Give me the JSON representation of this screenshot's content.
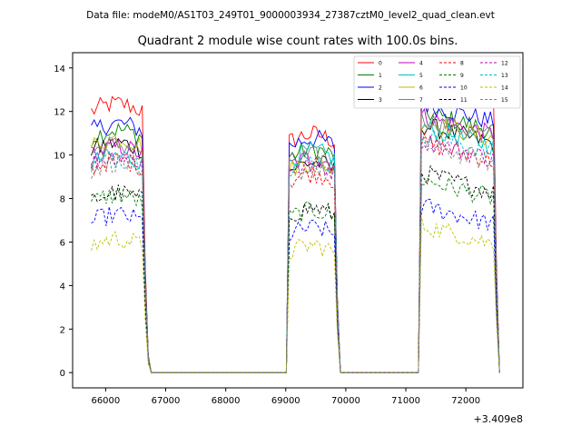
{
  "figure": {
    "suptitle": "Data file: modeM0/AS1T03_249T01_9000003934_27387cztM0_level2_quad_clean.evt",
    "offset_text": "+3.409e8"
  },
  "chart_data": {
    "type": "line",
    "title": "Quadrant 2 module wise count rates with 100.0s bins.",
    "xlabel": "",
    "ylabel": "",
    "x_offset": 340900000,
    "xlim": [
      65450,
      72950
    ],
    "ylim": [
      -0.7,
      14.7
    ],
    "x_ticks": [
      66000,
      67000,
      68000,
      69000,
      70000,
      71000,
      72000
    ],
    "x_tick_labels": [
      "66000",
      "67000",
      "68000",
      "69000",
      "70000",
      "71000",
      "72000"
    ],
    "y_ticks": [
      0,
      2,
      4,
      6,
      8,
      10,
      12,
      14
    ],
    "y_tick_labels": [
      "0",
      "2",
      "4",
      "6",
      "8",
      "10",
      "12",
      "14"
    ],
    "legend_position": "top-right",
    "legend_columns": 4,
    "gti_segments": [
      {
        "start": 65760,
        "end": 66640,
        "tail_end": 66720
      },
      {
        "start": 69060,
        "end": 69840,
        "tail_end": 69890
      },
      {
        "start": 71230,
        "end": 72490,
        "tail_end": 72560
      }
    ],
    "series": [
      {
        "name": "0",
        "color": "#ff0000",
        "dashed": false,
        "levels": [
          12.0,
          10.6,
          12.9
        ]
      },
      {
        "name": "1",
        "color": "#008000",
        "dashed": false,
        "levels": [
          10.8,
          9.9,
          11.3
        ]
      },
      {
        "name": "2",
        "color": "#0000ff",
        "dashed": false,
        "levels": [
          11.1,
          10.4,
          11.7
        ]
      },
      {
        "name": "3",
        "color": "#000000",
        "dashed": false,
        "levels": [
          10.2,
          9.3,
          10.7
        ]
      },
      {
        "name": "4",
        "color": "#bf00bf",
        "dashed": false,
        "levels": [
          10.0,
          9.5,
          11.1
        ]
      },
      {
        "name": "5",
        "color": "#00bfbf",
        "dashed": false,
        "levels": [
          9.6,
          9.8,
          10.6
        ]
      },
      {
        "name": "6",
        "color": "#bfbf00",
        "dashed": false,
        "levels": [
          10.4,
          9.3,
          10.9
        ]
      },
      {
        "name": "7",
        "color": "#808080",
        "dashed": false,
        "levels": [
          10.1,
          9.6,
          11.0
        ]
      },
      {
        "name": "8",
        "color": "#ff0000",
        "dashed": true,
        "levels": [
          9.4,
          8.8,
          9.9
        ]
      },
      {
        "name": "9",
        "color": "#008000",
        "dashed": true,
        "levels": [
          7.8,
          7.1,
          8.2
        ]
      },
      {
        "name": "10",
        "color": "#0000ff",
        "dashed": true,
        "levels": [
          6.9,
          6.3,
          7.0
        ]
      },
      {
        "name": "11",
        "color": "#000000",
        "dashed": true,
        "levels": [
          7.9,
          7.2,
          8.5
        ]
      },
      {
        "name": "12",
        "color": "#bf00bf",
        "dashed": true,
        "levels": [
          9.6,
          9.2,
          10.0
        ]
      },
      {
        "name": "13",
        "color": "#00bfbf",
        "dashed": true,
        "levels": [
          9.5,
          9.4,
          10.3
        ]
      },
      {
        "name": "14",
        "color": "#bfbf00",
        "dashed": true,
        "levels": [
          5.8,
          5.5,
          6.1
        ]
      },
      {
        "name": "15",
        "color": "#808080",
        "dashed": true,
        "levels": [
          9.3,
          9.0,
          9.8
        ]
      }
    ]
  }
}
